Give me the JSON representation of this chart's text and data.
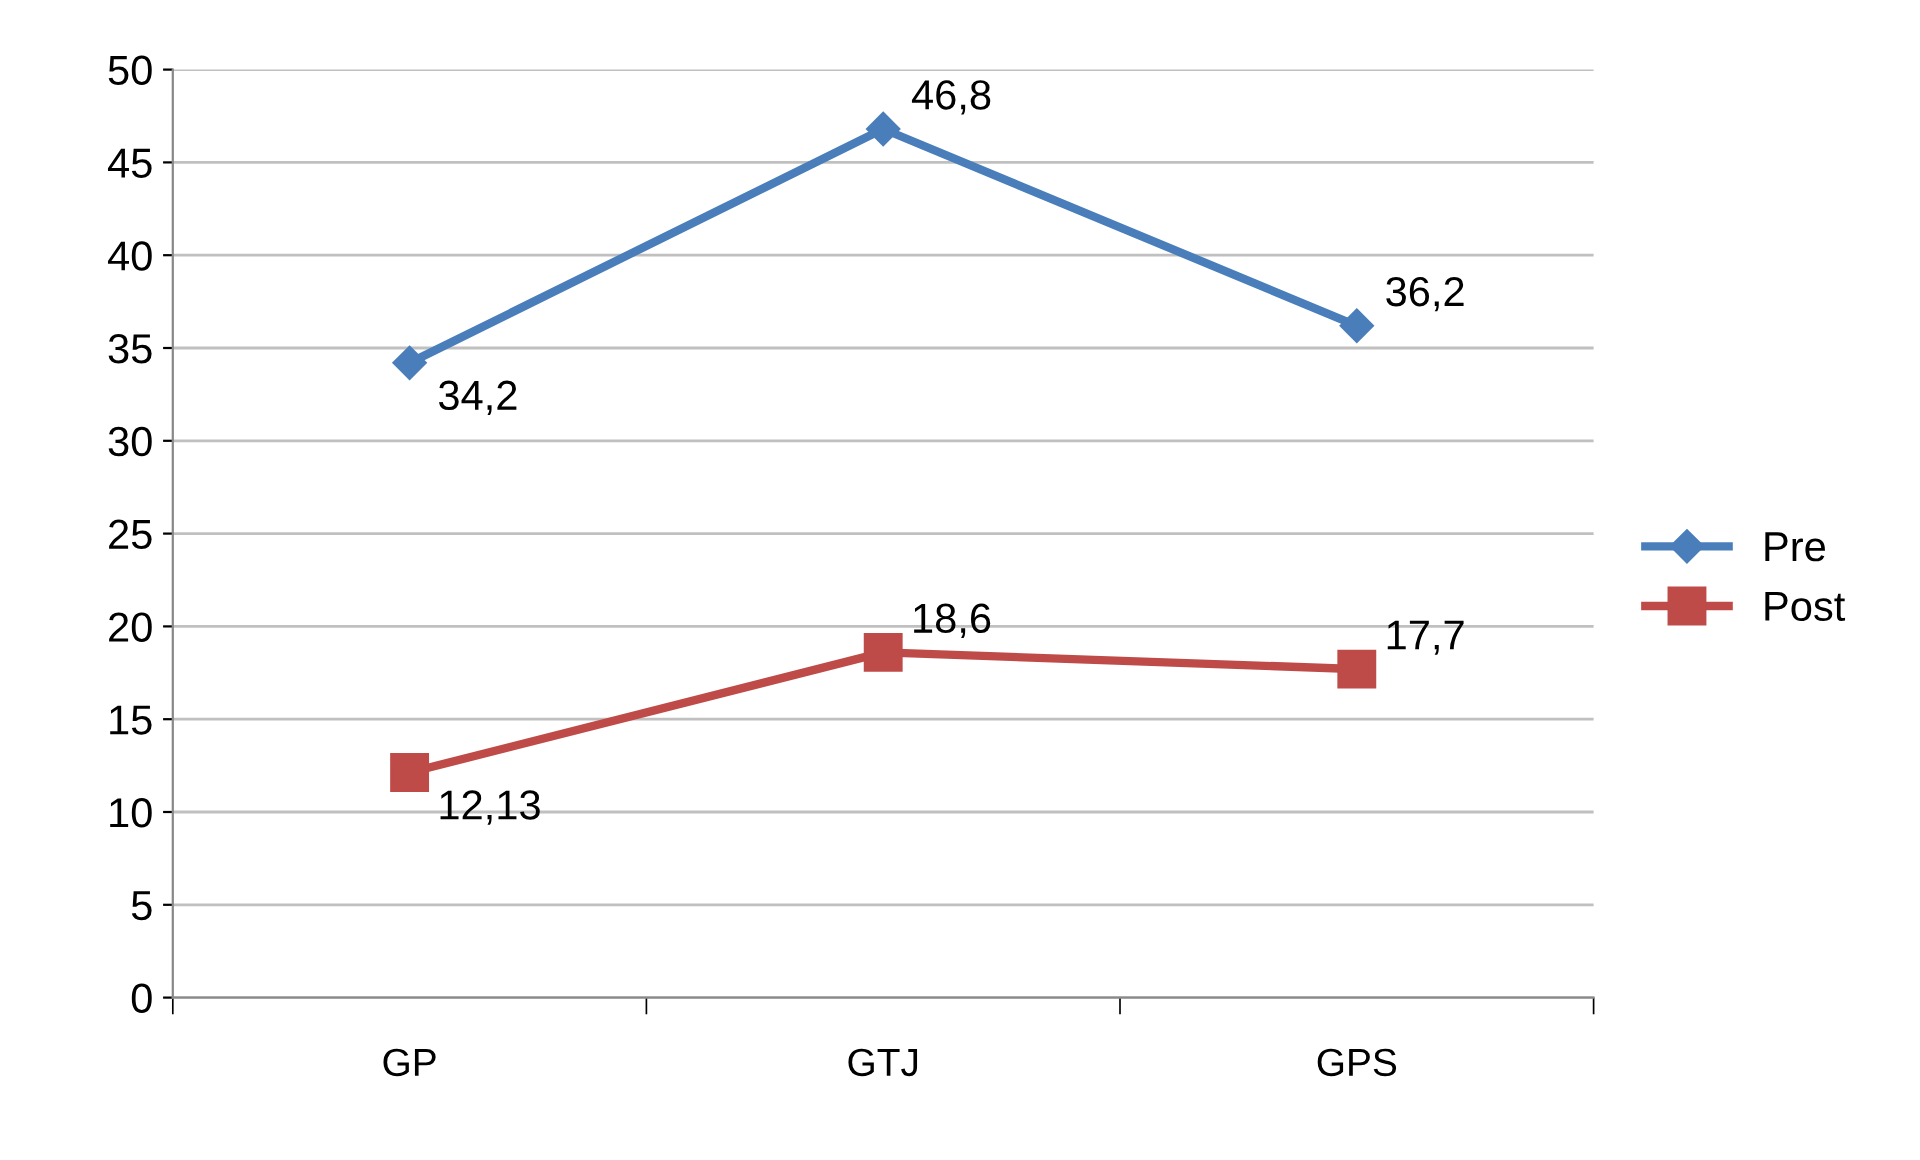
{
  "chart_data": {
    "type": "line",
    "categories": [
      "GP",
      "GTJ",
      "GPS"
    ],
    "series": [
      {
        "name": "Pre",
        "color": "#4a7ebb",
        "marker": "diamond",
        "values": [
          34.2,
          46.8,
          36.2
        ],
        "value_labels": [
          "34,2",
          "46,8",
          "36,2"
        ]
      },
      {
        "name": "Post",
        "color": "#be4b48",
        "marker": "square",
        "values": [
          12.13,
          18.6,
          17.7
        ],
        "value_labels": [
          "12,13",
          "18,6",
          "17,7"
        ]
      }
    ],
    "ylim": [
      0,
      50
    ],
    "yticks": [
      0,
      5,
      10,
      15,
      20,
      25,
      30,
      35,
      40,
      45,
      50
    ],
    "grid": "y",
    "legend": "right",
    "line_style": "solid"
  }
}
